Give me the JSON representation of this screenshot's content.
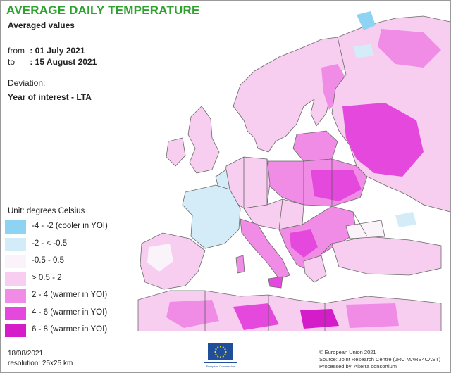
{
  "title": "AVERAGE DAILY TEMPERATURE",
  "subtitle": "Averaged values",
  "period": {
    "from_label": "from",
    "from_value": ": 01 July 2021",
    "to_label": "to",
    "to_value": ": 15 August 2021"
  },
  "deviation_label": "Deviation:",
  "comparison_label": "Year of interest - LTA",
  "unit_label": "Unit: degrees Celsius",
  "legend": [
    {
      "label": "-4 - -2 (cooler in YOI)",
      "color": "#8fd3f3"
    },
    {
      "label": "-2 - < -0.5",
      "color": "#d3ecf7"
    },
    {
      "label": "-0.5 - 0.5",
      "color": "#fbf3fa"
    },
    {
      "label": "> 0.5 - 2",
      "color": "#f7cdf0"
    },
    {
      "label": "2 - 4 (warmer in YOI)",
      "color": "#f08ce6"
    },
    {
      "label": "4 - 6 (warmer in YOI)",
      "color": "#e548dd"
    },
    {
      "label": "6 - 8 (warmer in YOI)",
      "color": "#d41cc8"
    }
  ],
  "footer": {
    "date": "18/08/2021",
    "resolution": "resolution: 25x25 km"
  },
  "logo": {
    "name": "eu-flag",
    "text": "European Commission",
    "colors": {
      "field": "#1f4e9a",
      "stars": "#ffd617"
    }
  },
  "credits": [
    "© European Union 2021",
    "Source: Joint Research Centre (JRC MARS4CAST)",
    "Processed by: Alterra consortium"
  ],
  "map_colors": {
    "sea": "#ffffff",
    "border": "#555555",
    "coast": "#6a6a6a"
  }
}
